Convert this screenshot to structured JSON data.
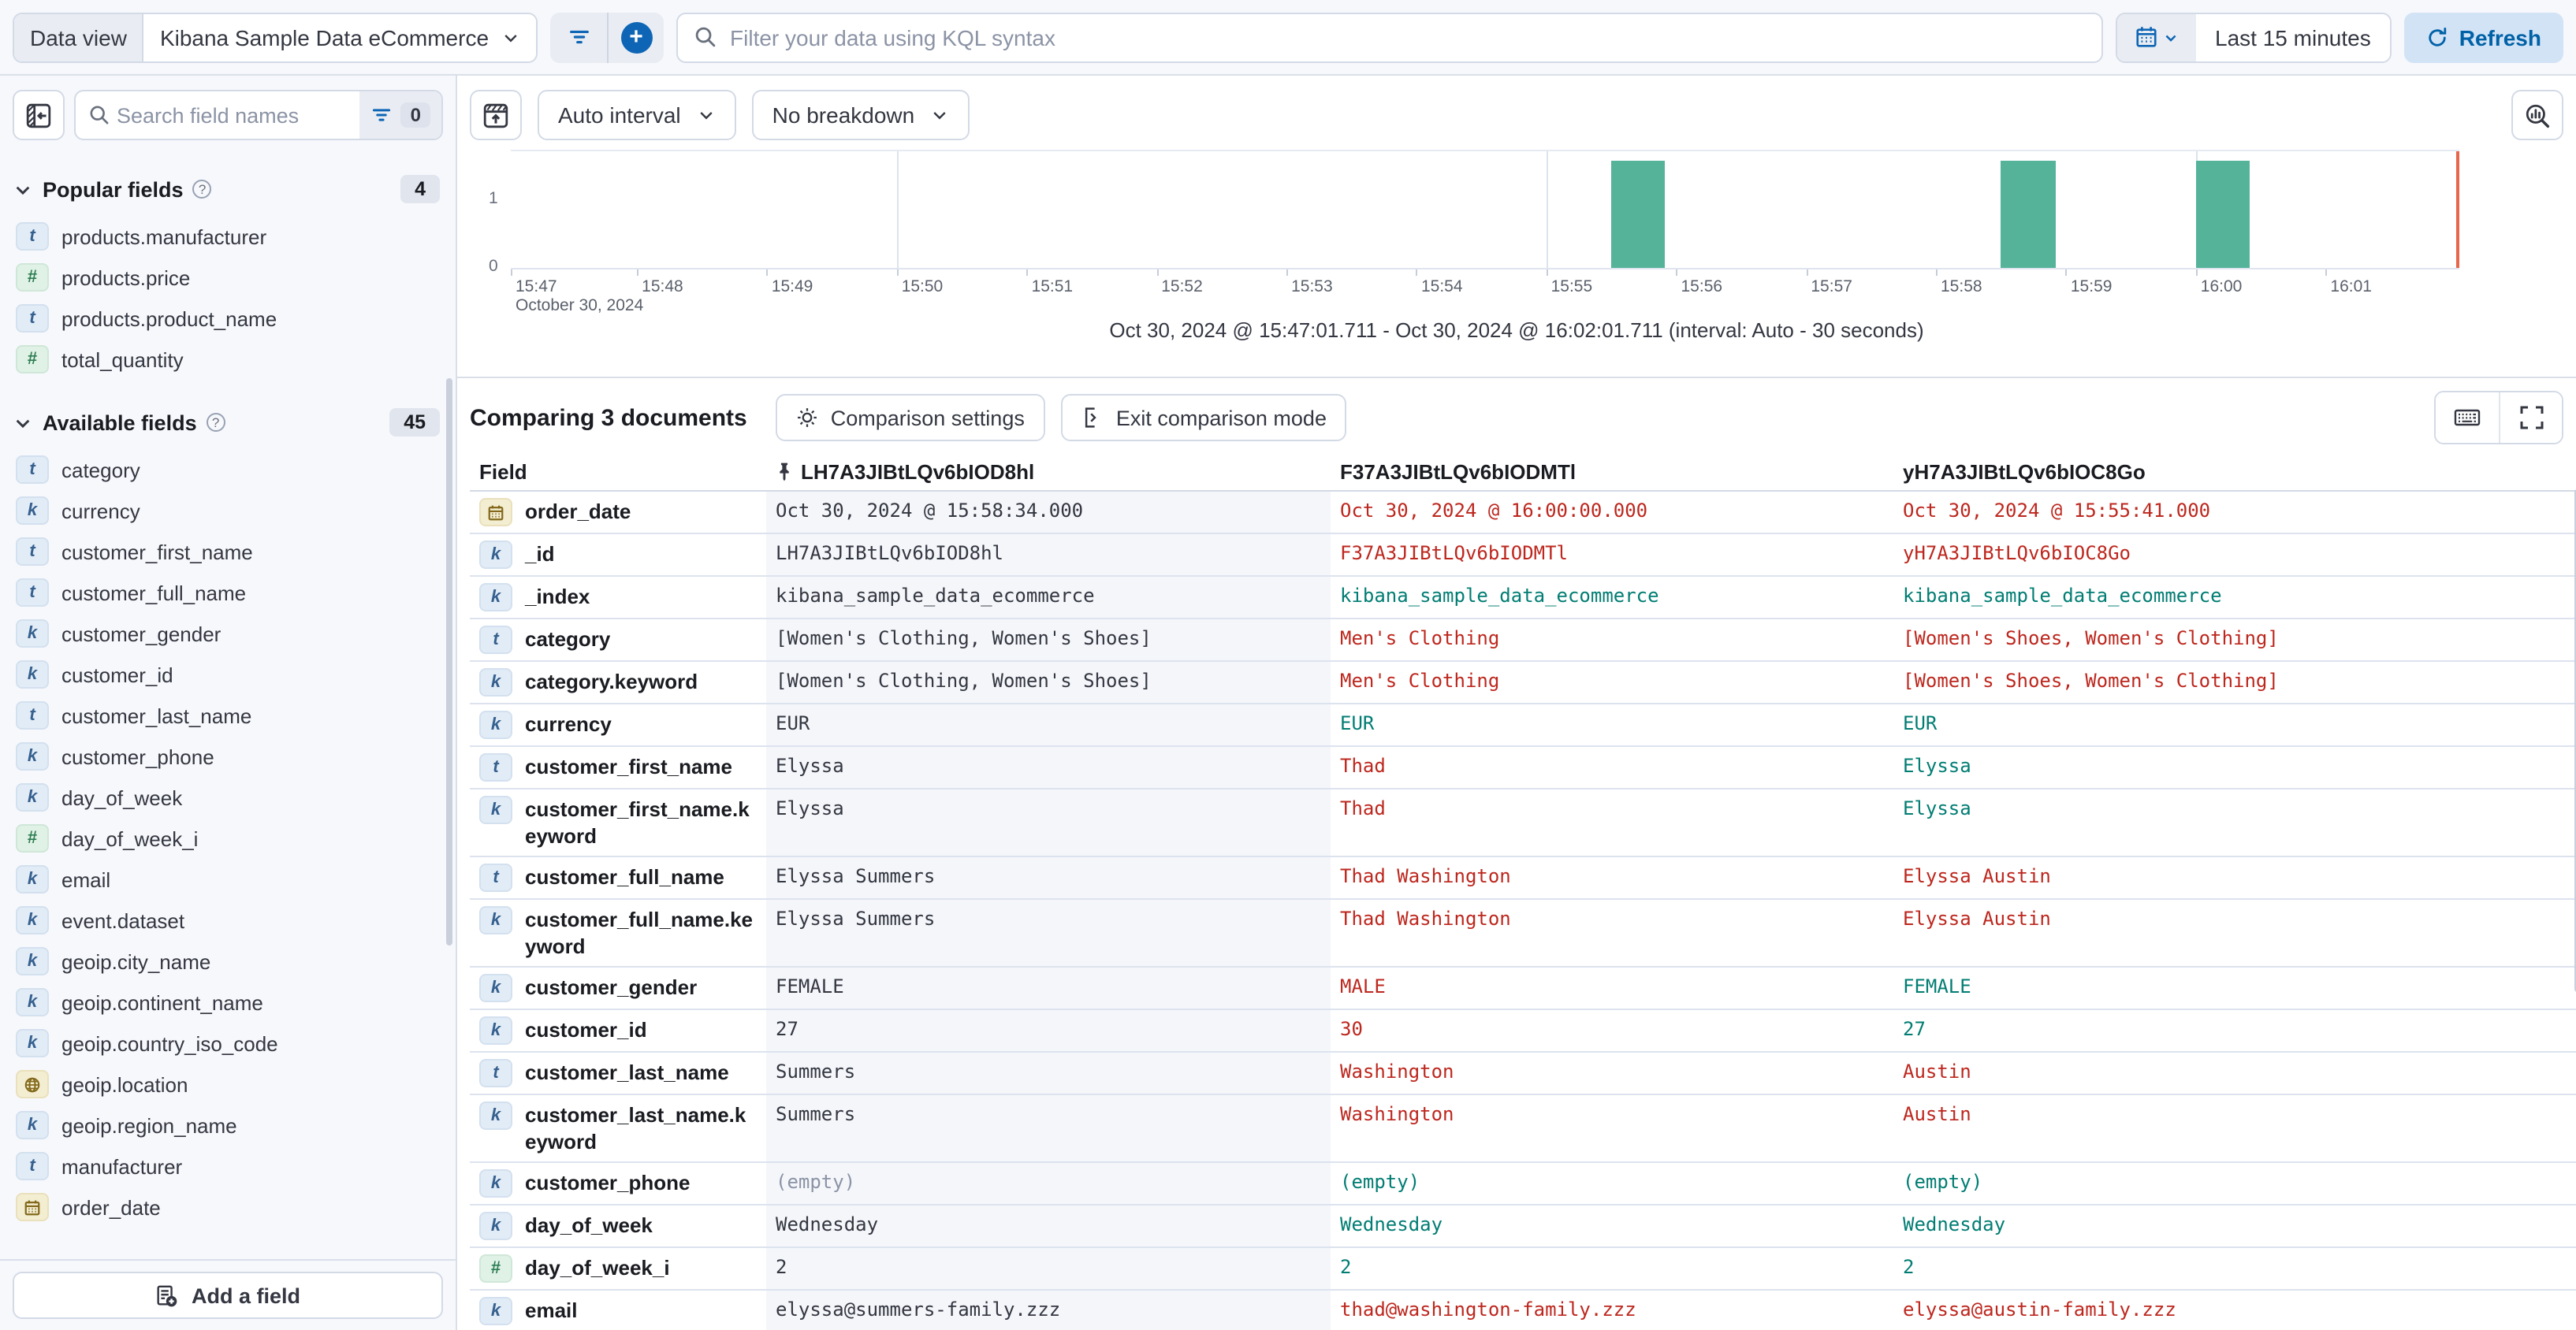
{
  "colors": {
    "primary": "#0e65b5",
    "danger": "#bd271e",
    "success": "#017d73",
    "bar": "#54b399",
    "now_line": "#e7664c"
  },
  "top_bar": {
    "data_view_label": "Data view",
    "data_view_value": "Kibana Sample Data eCommerce",
    "kql_placeholder": "Filter your data using KQL syntax",
    "time_range": "Last 15 minutes",
    "refresh_label": "Refresh"
  },
  "sidebar": {
    "search_placeholder": "Search field names",
    "filter_count": "0",
    "popular": {
      "title": "Popular fields",
      "count": "4",
      "items": [
        {
          "type": "t",
          "name": "products.manufacturer"
        },
        {
          "type": "num",
          "name": "products.price"
        },
        {
          "type": "t",
          "name": "products.product_name"
        },
        {
          "type": "num",
          "name": "total_quantity"
        }
      ]
    },
    "available": {
      "title": "Available fields",
      "count": "45",
      "items": [
        {
          "type": "t",
          "name": "category"
        },
        {
          "type": "k",
          "name": "currency"
        },
        {
          "type": "t",
          "name": "customer_first_name"
        },
        {
          "type": "t",
          "name": "customer_full_name"
        },
        {
          "type": "k",
          "name": "customer_gender"
        },
        {
          "type": "k",
          "name": "customer_id"
        },
        {
          "type": "t",
          "name": "customer_last_name"
        },
        {
          "type": "k",
          "name": "customer_phone"
        },
        {
          "type": "k",
          "name": "day_of_week"
        },
        {
          "type": "num",
          "name": "day_of_week_i"
        },
        {
          "type": "k",
          "name": "email"
        },
        {
          "type": "k",
          "name": "event.dataset"
        },
        {
          "type": "k",
          "name": "geoip.city_name"
        },
        {
          "type": "k",
          "name": "geoip.continent_name"
        },
        {
          "type": "k",
          "name": "geoip.country_iso_code"
        },
        {
          "type": "geo",
          "name": "geoip.location"
        },
        {
          "type": "k",
          "name": "geoip.region_name"
        },
        {
          "type": "t",
          "name": "manufacturer"
        },
        {
          "type": "date",
          "name": "order_date"
        }
      ]
    },
    "add_field_label": "Add a field"
  },
  "chart": {
    "interval_label": "Auto interval",
    "breakdown_label": "No breakdown",
    "date_label": "October 30, 2024",
    "range_text": "Oct 30, 2024 @ 15:47:01.711 - Oct 30, 2024 @ 16:02:01.711 (interval: Auto - 30 seconds)"
  },
  "chart_data": {
    "type": "bar",
    "x_domain": [
      "15:47:01.711",
      "16:02:01.711"
    ],
    "interval_seconds": 30,
    "buckets": [
      {
        "time": "15:55:30",
        "count": 1
      },
      {
        "time": "15:58:30",
        "count": 1
      },
      {
        "time": "16:00:00",
        "count": 1
      }
    ],
    "ylim": [
      0,
      1
    ],
    "y_ticks": [
      "1",
      "0"
    ],
    "x_tick_labels": [
      "15:47",
      "15:48",
      "15:49",
      "15:50",
      "15:51",
      "15:52",
      "15:53",
      "15:54",
      "15:55",
      "15:56",
      "15:57",
      "15:58",
      "15:59",
      "16:00",
      "16:01"
    ],
    "gridlines": [
      "15:50:00",
      "15:55:00",
      "16:00:00"
    ],
    "bar_color": "#54b399"
  },
  "comparison": {
    "title": "Comparing 3 documents",
    "settings_label": "Comparison settings",
    "exit_label": "Exit comparison mode"
  },
  "table": {
    "field_header": "Field",
    "doc_ids": [
      "LH7A3JIBtLQv6bIOD8hl",
      "F37A3JIBtLQv6bIODMTl",
      "yH7A3JIBtLQv6bIOC8Go"
    ],
    "rows": [
      {
        "field": "order_date",
        "type": "date",
        "base": "Oct 30, 2024 @ 15:58:34.000",
        "sbase": "",
        "a": "Oct 30, 2024 @ 16:00:00.000",
        "sa": "diff",
        "b": "Oct 30, 2024 @ 15:55:41.000",
        "sb": "diff"
      },
      {
        "field": "_id",
        "type": "k",
        "base": "LH7A3JIBtLQv6bIOD8hl",
        "sbase": "",
        "a": "F37A3JIBtLQv6bIODMTl",
        "sa": "diff",
        "b": "yH7A3JIBtLQv6bIOC8Go",
        "sb": "diff"
      },
      {
        "field": "_index",
        "type": "k",
        "base": "kibana_sample_data_ecommerce",
        "sbase": "",
        "a": "kibana_sample_data_ecommerce",
        "sa": "same",
        "b": "kibana_sample_data_ecommerce",
        "sb": "same"
      },
      {
        "field": "category",
        "type": "t",
        "base": "[Women's Clothing, Women's Shoes]",
        "sbase": "",
        "a": "Men's Clothing",
        "sa": "diff",
        "b": "[Women's Shoes, Women's Clothing]",
        "sb": "diff"
      },
      {
        "field": "category.keyword",
        "type": "k",
        "base": "[Women's Clothing, Women's Shoes]",
        "sbase": "",
        "a": "Men's Clothing",
        "sa": "diff",
        "b": "[Women's Shoes, Women's Clothing]",
        "sb": "diff"
      },
      {
        "field": "currency",
        "type": "k",
        "base": "EUR",
        "sbase": "",
        "a": "EUR",
        "sa": "same",
        "b": "EUR",
        "sb": "same"
      },
      {
        "field": "customer_first_name",
        "type": "t",
        "base": "Elyssa",
        "sbase": "",
        "a": "Thad",
        "sa": "diff",
        "b": "Elyssa",
        "sb": "same"
      },
      {
        "field": "customer_first_name.keyword",
        "type": "k",
        "base": "Elyssa",
        "sbase": "",
        "a": "Thad",
        "sa": "diff",
        "b": "Elyssa",
        "sb": "same"
      },
      {
        "field": "customer_full_name",
        "type": "t",
        "base": "Elyssa Summers",
        "sbase": "",
        "a": "Thad Washington",
        "sa": "diff",
        "b": "Elyssa Austin",
        "sb": "diff"
      },
      {
        "field": "customer_full_name.keyword",
        "type": "k",
        "base": "Elyssa Summers",
        "sbase": "",
        "a": "Thad Washington",
        "sa": "diff",
        "b": "Elyssa Austin",
        "sb": "diff"
      },
      {
        "field": "customer_gender",
        "type": "k",
        "base": "FEMALE",
        "sbase": "",
        "a": "MALE",
        "sa": "diff",
        "b": "FEMALE",
        "sb": "same"
      },
      {
        "field": "customer_id",
        "type": "k",
        "base": "27",
        "sbase": "",
        "a": "30",
        "sa": "diff",
        "b": "27",
        "sb": "same"
      },
      {
        "field": "customer_last_name",
        "type": "t",
        "base": "Summers",
        "sbase": "",
        "a": "Washington",
        "sa": "diff",
        "b": "Austin",
        "sb": "diff"
      },
      {
        "field": "customer_last_name.keyword",
        "type": "k",
        "base": "Summers",
        "sbase": "",
        "a": "Washington",
        "sa": "diff",
        "b": "Austin",
        "sb": "diff"
      },
      {
        "field": "customer_phone",
        "type": "k",
        "base": "(empty)",
        "sbase": "muted",
        "a": "(empty)",
        "sa": "same",
        "b": "(empty)",
        "sb": "same"
      },
      {
        "field": "day_of_week",
        "type": "k",
        "base": "Wednesday",
        "sbase": "",
        "a": "Wednesday",
        "sa": "same",
        "b": "Wednesday",
        "sb": "same"
      },
      {
        "field": "day_of_week_i",
        "type": "num",
        "base": "2",
        "sbase": "",
        "a": "2",
        "sa": "same",
        "b": "2",
        "sb": "same"
      },
      {
        "field": "email",
        "type": "k",
        "base": "elyssa@summers-family.zzz",
        "sbase": "",
        "a": "thad@washington-family.zzz",
        "sa": "diff",
        "b": "elyssa@austin-family.zzz",
        "sb": "diff"
      }
    ]
  }
}
